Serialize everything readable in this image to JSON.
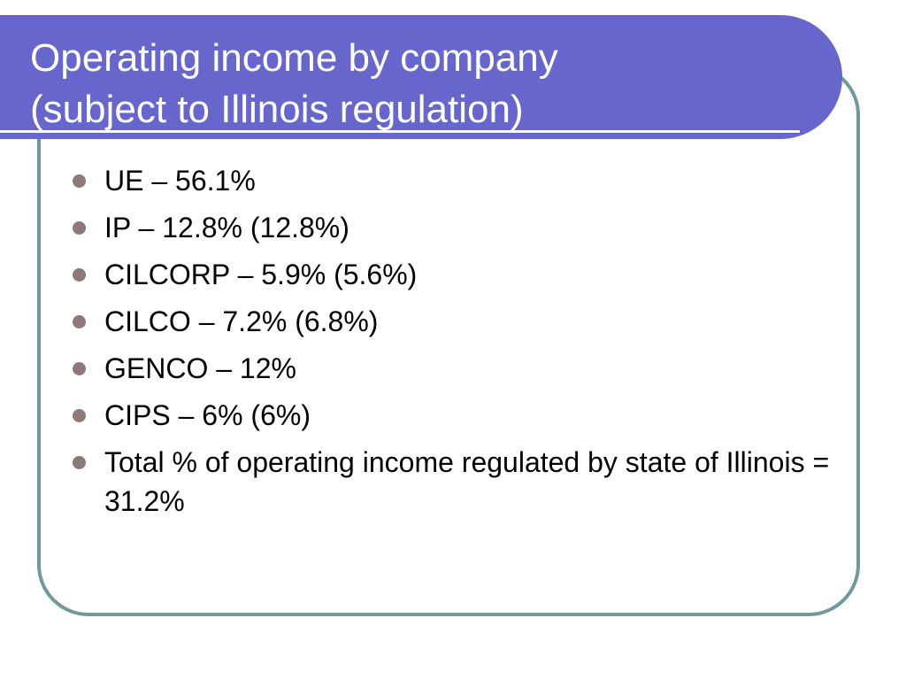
{
  "slide": {
    "title_line1": "Operating income by company",
    "title_line2": "(subject to Illinois regulation)",
    "bullets": [
      "UE – 56.1%",
      "IP – 12.8% (12.8%)",
      "CILCORP – 5.9% (5.6%)",
      "CILCO – 7.2% (6.8%)",
      "GENCO – 12%",
      "CIPS – 6% (6%)",
      "Total % of operating income regulated by state of Illinois = 31.2%"
    ]
  },
  "colors": {
    "title_banner": "#6666cc",
    "frame_border": "#6f9a99",
    "bullet_dot": "#8f7878"
  },
  "icons": {
    "bullet": "bullet-dot-icon"
  }
}
